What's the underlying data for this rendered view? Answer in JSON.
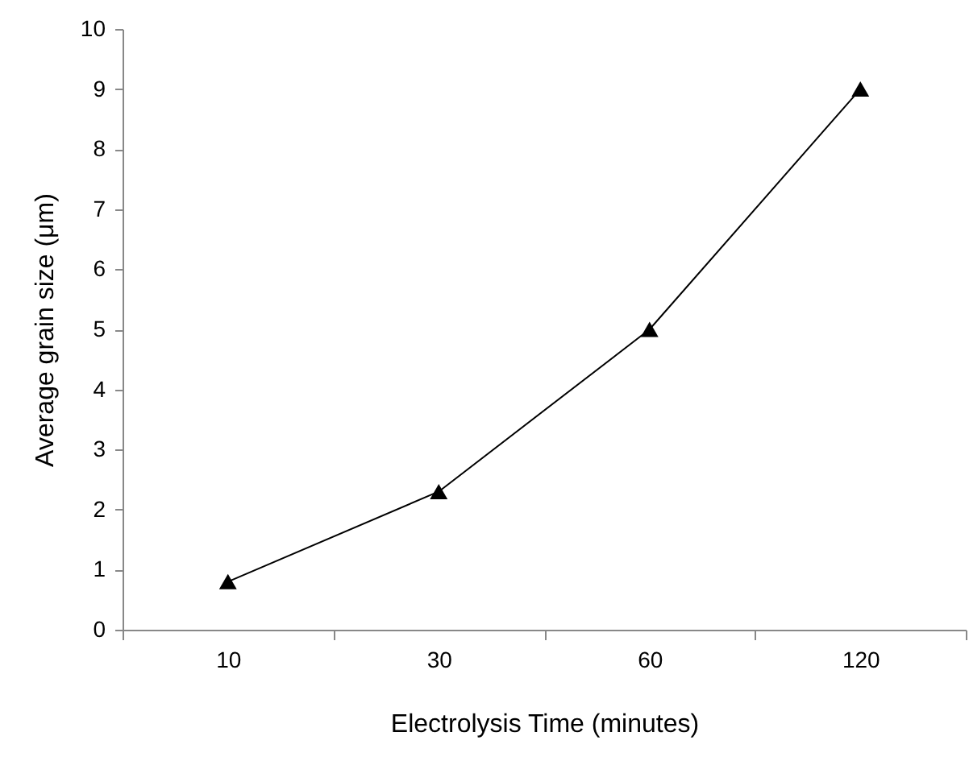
{
  "chart_data": {
    "type": "line",
    "xlabel": "Electrolysis Time (minutes)",
    "ylabel": "Average grain size (μm)",
    "categories": [
      "10",
      "30",
      "60",
      "120"
    ],
    "series": [
      {
        "color": "#000000",
        "values": [
          0.8,
          2.3,
          5.0,
          9.0
        ]
      }
    ],
    "ylim": [
      0,
      10
    ],
    "yticks": [
      0,
      1,
      2,
      3,
      4,
      5,
      6,
      7,
      8,
      9,
      10
    ],
    "marker": "triangle",
    "line_style": "solid",
    "grid": false
  }
}
